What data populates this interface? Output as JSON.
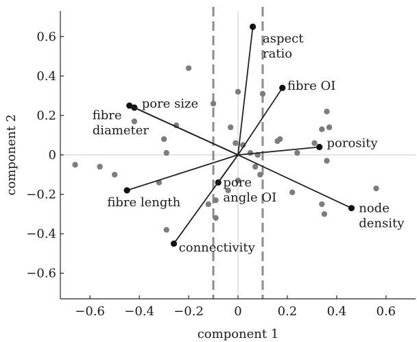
{
  "chart_data": {
    "type": "scatter",
    "xlabel": "component 1",
    "ylabel": "component 2",
    "xlim": [
      -0.72,
      0.72
    ],
    "ylim": [
      -0.73,
      0.73
    ],
    "xticks": [
      -0.6,
      -0.4,
      -0.2,
      0,
      0.2,
      0.4,
      0.6
    ],
    "yticks": [
      -0.6,
      -0.4,
      -0.2,
      0,
      0.2,
      0.4,
      0.6
    ],
    "xtick_labels": [
      "−0.6",
      "−0.4",
      "−0.2",
      "0",
      "0.2",
      "0.4",
      "0.6"
    ],
    "ytick_labels": [
      "−0.6",
      "−0.4",
      "−0.2",
      "0",
      "0.2",
      "0.4",
      "0.6"
    ],
    "threshold_lines_x": [
      -0.1,
      0.1
    ],
    "colors": {
      "points": "#7d7d7d",
      "vectors": "#222222",
      "threshold": "#8c8c8c"
    },
    "points": [
      {
        "x": -0.2,
        "y": 0.44
      },
      {
        "x": 0.0,
        "y": 0.32
      },
      {
        "x": 0.1,
        "y": 0.31
      },
      {
        "x": -0.1,
        "y": 0.26
      },
      {
        "x": -0.42,
        "y": 0.17
      },
      {
        "x": -0.25,
        "y": 0.15
      },
      {
        "x": -0.03,
        "y": 0.14
      },
      {
        "x": 0.36,
        "y": 0.22
      },
      {
        "x": 0.37,
        "y": 0.14
      },
      {
        "x": 0.34,
        "y": 0.13
      },
      {
        "x": 0.17,
        "y": 0.08
      },
      {
        "x": 0.16,
        "y": 0.07
      },
      {
        "x": 0.31,
        "y": 0.06
      },
      {
        "x": -0.3,
        "y": 0.08
      },
      {
        "x": -0.29,
        "y": 0.01
      },
      {
        "x": 0.24,
        "y": 0.01
      },
      {
        "x": 0.36,
        "y": -0.03
      },
      {
        "x": -0.66,
        "y": -0.05
      },
      {
        "x": -0.56,
        "y": -0.06
      },
      {
        "x": -0.5,
        "y": -0.1
      },
      {
        "x": -0.32,
        "y": -0.14
      },
      {
        "x": 0.02,
        "y": 0.05
      },
      {
        "x": -0.01,
        "y": 0.06
      },
      {
        "x": 0.05,
        "y": 0.01
      },
      {
        "x": 0.08,
        "y": 0.0
      },
      {
        "x": 0.07,
        "y": -0.06
      },
      {
        "x": 0.09,
        "y": -0.1
      },
      {
        "x": 0.0,
        "y": -0.13
      },
      {
        "x": -0.04,
        "y": -0.18
      },
      {
        "x": 0.22,
        "y": -0.19
      },
      {
        "x": 0.56,
        "y": -0.17
      },
      {
        "x": 0.34,
        "y": -0.25
      },
      {
        "x": 0.35,
        "y": -0.3
      },
      {
        "x": -0.09,
        "y": -0.23
      },
      {
        "x": -0.12,
        "y": -0.25
      },
      {
        "x": -0.09,
        "y": -0.32
      },
      {
        "x": -0.29,
        "y": -0.38
      }
    ],
    "vectors": [
      {
        "name": "aspect ratio",
        "label_lines": [
          "aspect",
          "ratio"
        ],
        "x": 0.06,
        "y": 0.65,
        "label_x": 0.1,
        "label_y": 0.57,
        "anchor": "start"
      },
      {
        "name": "fibre OI",
        "label_lines": [
          "fibre OI"
        ],
        "x": 0.18,
        "y": 0.34,
        "label_x": 0.2,
        "label_y": 0.33,
        "anchor": "start"
      },
      {
        "name": "pore size",
        "label_lines": [
          "pore size"
        ],
        "x": -0.42,
        "y": 0.24,
        "label_x": -0.39,
        "label_y": 0.24,
        "anchor": "start"
      },
      {
        "name": "fibre diameter",
        "label_lines": [
          "fibre",
          "diameter"
        ],
        "x": -0.44,
        "y": 0.25,
        "label_x": -0.59,
        "label_y": 0.18,
        "anchor": "start"
      },
      {
        "name": "porosity",
        "label_lines": [
          "porosity"
        ],
        "x": 0.33,
        "y": 0.04,
        "label_x": 0.36,
        "label_y": 0.04,
        "anchor": "start"
      },
      {
        "name": "pore angle OI",
        "label_lines": [
          "pore",
          "angle OI"
        ],
        "x": -0.08,
        "y": -0.14,
        "label_x": -0.06,
        "label_y": -0.16,
        "anchor": "start"
      },
      {
        "name": "fibre length",
        "label_lines": [
          "fibre length"
        ],
        "x": -0.45,
        "y": -0.18,
        "label_x": -0.53,
        "label_y": -0.26,
        "anchor": "start"
      },
      {
        "name": "node density",
        "label_lines": [
          "node",
          "density"
        ],
        "x": 0.46,
        "y": -0.27,
        "label_x": 0.49,
        "label_y": -0.29,
        "anchor": "start"
      },
      {
        "name": "connectivity",
        "label_lines": [
          "connectivity"
        ],
        "x": -0.26,
        "y": -0.45,
        "label_x": -0.24,
        "label_y": -0.49,
        "anchor": "start"
      }
    ]
  }
}
